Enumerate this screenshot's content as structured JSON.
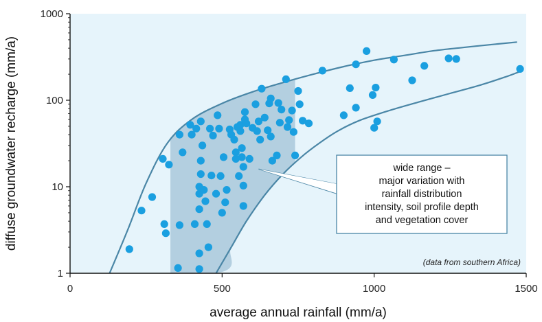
{
  "chart_data": {
    "type": "scatter",
    "xlabel": "average annual rainfall (mm/a)",
    "ylabel": "diffuse groundwater recharge (mm/a)",
    "xlim": [
      0,
      1500
    ],
    "ylim": [
      1,
      1000
    ],
    "y_scale": "log",
    "x_ticks": [
      "0",
      "500",
      "1000",
      "1500"
    ],
    "y_ticks": [
      "1",
      "10",
      "100",
      "1000"
    ],
    "grid": false,
    "colors": {
      "plot_background": "#e6f4fb",
      "points": "#1a9fe0",
      "envelope_lines": "#4a86a6",
      "highlight_band": "#b3cfe0",
      "callout_border": "#4a86a6"
    },
    "envelope": {
      "upper": [
        [
          130,
          1.0
        ],
        [
          190,
          3.2
        ],
        [
          250,
          11
        ],
        [
          320,
          32
        ],
        [
          400,
          60
        ],
        [
          500,
          92
        ],
        [
          600,
          125
        ],
        [
          700,
          160
        ],
        [
          800,
          200
        ],
        [
          900,
          245
        ],
        [
          1000,
          290
        ],
        [
          1100,
          330
        ],
        [
          1200,
          375
        ],
        [
          1300,
          410
        ],
        [
          1400,
          445
        ],
        [
          1470,
          470
        ]
      ],
      "lower": [
        [
          480,
          1.0
        ],
        [
          530,
          2.0
        ],
        [
          580,
          4.0
        ],
        [
          640,
          8.0
        ],
        [
          700,
          14
        ],
        [
          760,
          22
        ],
        [
          820,
          32
        ],
        [
          880,
          44
        ],
        [
          950,
          58
        ],
        [
          1050,
          76
        ],
        [
          1150,
          96
        ],
        [
          1250,
          120
        ],
        [
          1350,
          150
        ],
        [
          1430,
          185
        ],
        [
          1480,
          215
        ]
      ]
    },
    "highlight_band": {
      "x_range": [
        330,
        740
      ],
      "upper_y_at_right": 220,
      "lower_y_at_right": 23
    },
    "points": [
      [
        195,
        1.9
      ],
      [
        235,
        5.3
      ],
      [
        270,
        7.6
      ],
      [
        305,
        21
      ],
      [
        310,
        3.7
      ],
      [
        315,
        2.9
      ],
      [
        325,
        18
      ],
      [
        355,
        1.15
      ],
      [
        360,
        3.6
      ],
      [
        360,
        40
      ],
      [
        370,
        25
      ],
      [
        395,
        52
      ],
      [
        400,
        40
      ],
      [
        410,
        3.7
      ],
      [
        415,
        47
      ],
      [
        425,
        10
      ],
      [
        425,
        8.3
      ],
      [
        425,
        5.5
      ],
      [
        425,
        1.7
      ],
      [
        425,
        1.12
      ],
      [
        430,
        57
      ],
      [
        430,
        20
      ],
      [
        430,
        14
      ],
      [
        435,
        30
      ],
      [
        440,
        9.2
      ],
      [
        445,
        6.8
      ],
      [
        450,
        3.7
      ],
      [
        455,
        2.0
      ],
      [
        460,
        47
      ],
      [
        465,
        13.5
      ],
      [
        470,
        39
      ],
      [
        480,
        8.3
      ],
      [
        485,
        67
      ],
      [
        490,
        47
      ],
      [
        495,
        13.3
      ],
      [
        500,
        5.0
      ],
      [
        505,
        22
      ],
      [
        510,
        6.6
      ],
      [
        515,
        9.2
      ],
      [
        525,
        46
      ],
      [
        530,
        40
      ],
      [
        540,
        35
      ],
      [
        545,
        25
      ],
      [
        545,
        21
      ],
      [
        550,
        49
      ],
      [
        555,
        13.3
      ],
      [
        560,
        52
      ],
      [
        560,
        44
      ],
      [
        565,
        28
      ],
      [
        565,
        22
      ],
      [
        570,
        17
      ],
      [
        570,
        10.3
      ],
      [
        570,
        6.0
      ],
      [
        575,
        73
      ],
      [
        575,
        60
      ],
      [
        580,
        54
      ],
      [
        590,
        21
      ],
      [
        600,
        48
      ],
      [
        610,
        90
      ],
      [
        615,
        44
      ],
      [
        620,
        57
      ],
      [
        625,
        35
      ],
      [
        630,
        136
      ],
      [
        640,
        63
      ],
      [
        650,
        45
      ],
      [
        655,
        92
      ],
      [
        660,
        105
      ],
      [
        660,
        38
      ],
      [
        665,
        20
      ],
      [
        680,
        23
      ],
      [
        685,
        93
      ],
      [
        690,
        55
      ],
      [
        695,
        78
      ],
      [
        710,
        175
      ],
      [
        715,
        49
      ],
      [
        720,
        59
      ],
      [
        730,
        76
      ],
      [
        735,
        43
      ],
      [
        740,
        23
      ],
      [
        750,
        128
      ],
      [
        755,
        90
      ],
      [
        765,
        58
      ],
      [
        785,
        54
      ],
      [
        830,
        220
      ],
      [
        900,
        67
      ],
      [
        920,
        138
      ],
      [
        940,
        82
      ],
      [
        940,
        260
      ],
      [
        975,
        370
      ],
      [
        995,
        115
      ],
      [
        1000,
        48
      ],
      [
        1005,
        140
      ],
      [
        1010,
        57
      ],
      [
        1065,
        295
      ],
      [
        1125,
        170
      ],
      [
        1165,
        250
      ],
      [
        1245,
        305
      ],
      [
        1270,
        300
      ],
      [
        1480,
        230
      ]
    ],
    "annotations": {
      "callout_lines": [
        "wide range –",
        "major variation with",
        "rainfall distribution",
        "intensity, soil profile depth",
        "and vegetation cover"
      ],
      "callout_anchor": [
        620,
        16
      ],
      "note": "(data from southern Africa)"
    }
  }
}
